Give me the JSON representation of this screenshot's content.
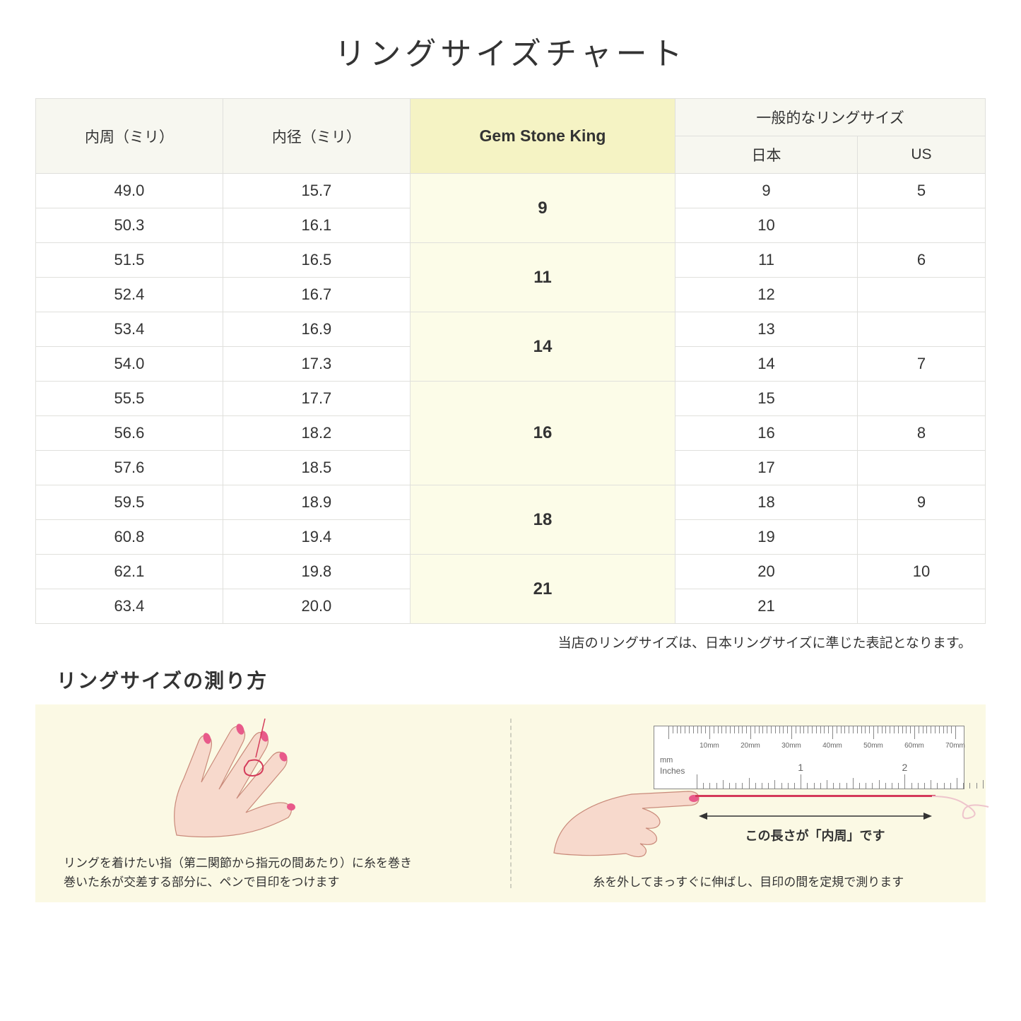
{
  "title": "リングサイズチャート",
  "table": {
    "headers": {
      "circumference": "内周（ミリ）",
      "diameter": "内径（ミリ）",
      "gsk": "Gem Stone King",
      "general": "一般的なリングサイズ",
      "japan": "日本",
      "us": "US"
    },
    "groups": [
      {
        "gsk": "9",
        "rows": [
          {
            "circ": "49.0",
            "dia": "15.7",
            "jp": "9",
            "us": "5"
          },
          {
            "circ": "50.3",
            "dia": "16.1",
            "jp": "10",
            "us": ""
          }
        ]
      },
      {
        "gsk": "11",
        "rows": [
          {
            "circ": "51.5",
            "dia": "16.5",
            "jp": "11",
            "us": "6"
          },
          {
            "circ": "52.4",
            "dia": "16.7",
            "jp": "12",
            "us": ""
          }
        ]
      },
      {
        "gsk": "14",
        "rows": [
          {
            "circ": "53.4",
            "dia": "16.9",
            "jp": "13",
            "us": ""
          },
          {
            "circ": "54.0",
            "dia": "17.3",
            "jp": "14",
            "us": "7"
          }
        ]
      },
      {
        "gsk": "16",
        "rows": [
          {
            "circ": "55.5",
            "dia": "17.7",
            "jp": "15",
            "us": ""
          },
          {
            "circ": "56.6",
            "dia": "18.2",
            "jp": "16",
            "us": "8"
          },
          {
            "circ": "57.6",
            "dia": "18.5",
            "jp": "17",
            "us": ""
          }
        ]
      },
      {
        "gsk": "18",
        "rows": [
          {
            "circ": "59.5",
            "dia": "18.9",
            "jp": "18",
            "us": "9"
          },
          {
            "circ": "60.8",
            "dia": "19.4",
            "jp": "19",
            "us": ""
          }
        ]
      },
      {
        "gsk": "21",
        "rows": [
          {
            "circ": "62.1",
            "dia": "19.8",
            "jp": "20",
            "us": "10"
          },
          {
            "circ": "63.4",
            "dia": "20.0",
            "jp": "21",
            "us": ""
          }
        ]
      }
    ]
  },
  "note": "当店のリングサイズは、日本リングサイズに準じた表記となります。",
  "howto": {
    "title": "リングサイズの測り方",
    "left_caption": "リングを着けたい指（第二関節から指元の間あたり）に糸を巻き\n巻いた糸が交差する部分に、ペンで目印をつけます",
    "right_caption": "糸を外してまっすぐに伸ばし、目印の間を定規で測ります",
    "arrow_label": "この長さが「内周」です",
    "ruler": {
      "mm_label": "mm",
      "inches_label": "Inches",
      "mm_ticks": [
        "10mm",
        "20mm",
        "30mm",
        "40mm",
        "50mm",
        "60mm",
        "70mm"
      ],
      "inch_ticks": [
        "1",
        "2"
      ]
    }
  },
  "colors": {
    "header_bg": "#f7f7f0",
    "gsk_header_bg": "#f5f3c4",
    "gsk_cell_bg": "#fcfce8",
    "border": "#e0e0dc",
    "howto_bg": "#fbf9e4",
    "thread": "#d43a5a",
    "hand_fill": "#f7d9cc",
    "hand_stroke": "#c98a7a",
    "nail": "#e85a8a"
  }
}
